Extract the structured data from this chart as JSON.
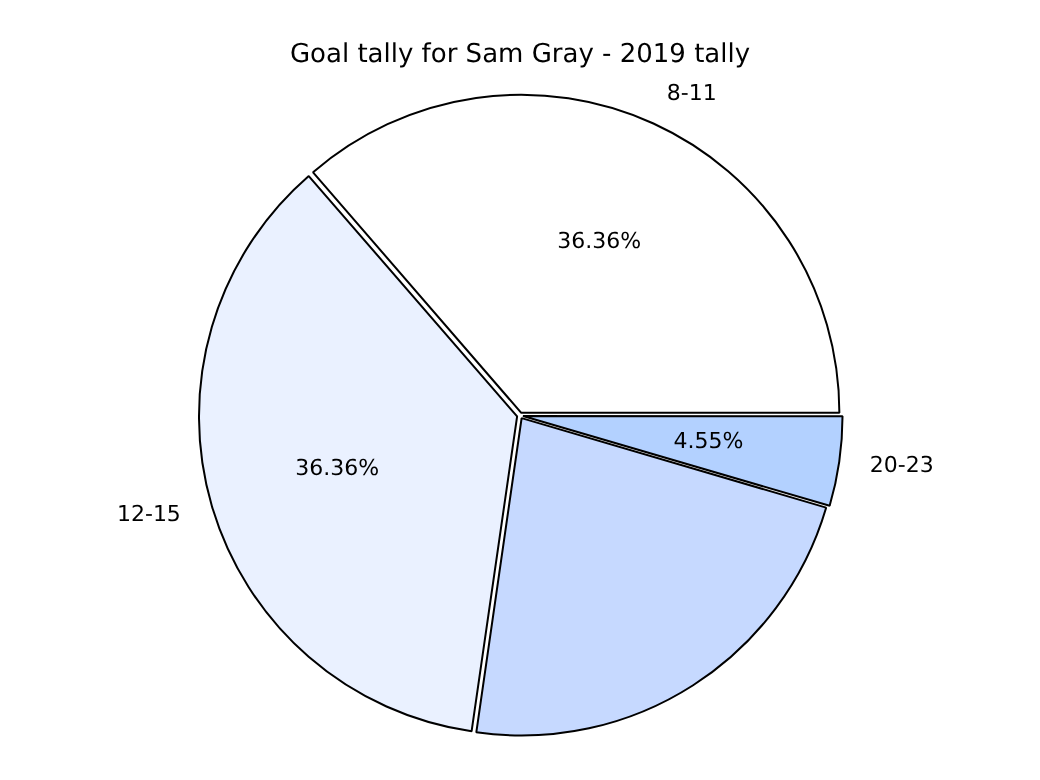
{
  "chart_data": {
    "type": "pie",
    "title": "Goal tally for Sam Gray - 2019 tally",
    "categories": [
      "20-23",
      null,
      "12-15",
      "8-11"
    ],
    "values": [
      4.55,
      22.73,
      36.36,
      36.36
    ],
    "colors": [
      "#b3d1ff",
      "#c6d9ff",
      "#eaf1ff",
      "#ffffff"
    ],
    "value_labels": [
      "4.55%",
      null,
      "36.36%",
      "36.36%"
    ],
    "legend": false
  }
}
